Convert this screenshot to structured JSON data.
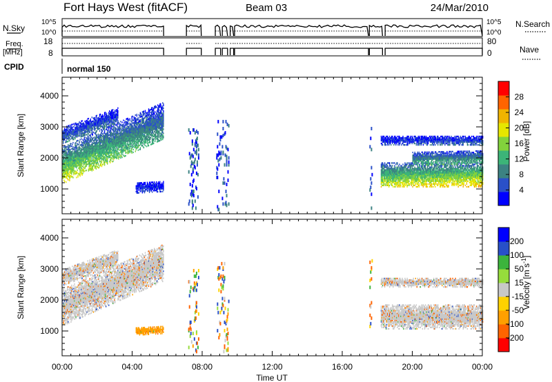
{
  "header": {
    "station": "Fort Hays West (fitACF)",
    "beam": "Beam 03",
    "date": "24/Mar/2010"
  },
  "top_panels": {
    "nsky_label": "N.Sky",
    "nsearch_label": "N.Search",
    "freq_label_1": "Freq.",
    "freq_label_2": "[MHz]",
    "nave_label": "Nave",
    "cpid_label": "CPID",
    "cpid_value": "normal 150",
    "noise_ticks": [
      "10^5",
      "10^0"
    ],
    "noise_ticks_right": [
      "10^5",
      "10^0"
    ],
    "freq_ticks": [
      "18",
      "8"
    ],
    "nave_ticks": [
      "80",
      "0"
    ]
  },
  "x_axis": {
    "label": "Time UT",
    "ticks": [
      "00:00",
      "04:00",
      "08:00",
      "12:00",
      "16:00",
      "20:00",
      "00:00"
    ]
  },
  "colors": {
    "power": [
      "#0000ff",
      "#2a50c8",
      "#3c8282",
      "#3cb478",
      "#82d23c",
      "#e6e600",
      "#f0b400",
      "#ff6400",
      "#ff0000"
    ],
    "velocity": [
      "#ff0000",
      "#ff6400",
      "#ffa000",
      "#ffd200",
      "#c8c8c8",
      "#96dc3c",
      "#3cb43c",
      "#2850c8",
      "#0000ff"
    ]
  },
  "chart_data": [
    {
      "type": "heatmap",
      "title": "",
      "xlabel": "",
      "ylabel": "Slant Range [km]",
      "xlim": [
        0,
        24
      ],
      "ylim": [
        200,
        4600
      ],
      "yticks": [
        "1000",
        "2000",
        "3000",
        "4000"
      ],
      "colorbar": {
        "label": "Power [dB]",
        "ticks": [
          "4",
          "8",
          "12",
          "16",
          "20",
          "24",
          "28"
        ],
        "range": [
          0,
          32
        ]
      },
      "bands": [
        {
          "t0": 0.0,
          "t1": 5.8,
          "r0_start": 1150,
          "r0_end": 2600,
          "width": 1200,
          "p_start": 24,
          "p_end": 12
        },
        {
          "t0": 0.0,
          "t1": 3.2,
          "r0_start": 2450,
          "r0_end": 3100,
          "width": 500,
          "p_start": 10,
          "p_end": 8
        },
        {
          "t0": 4.2,
          "t1": 5.8,
          "r0_start": 850,
          "r0_end": 900,
          "width": 350,
          "p_start": 5,
          "p_end": 5
        },
        {
          "t0": 18.2,
          "t1": 24.0,
          "r0_start": 1050,
          "r0_end": 1050,
          "width": 800,
          "p_start": 22,
          "p_end": 26
        },
        {
          "t0": 18.2,
          "t1": 24.0,
          "r0_start": 2400,
          "r0_end": 2400,
          "width": 300,
          "p_start": 6,
          "p_end": 8
        },
        {
          "t0": 20.0,
          "t1": 24.0,
          "r0_start": 1750,
          "r0_end": 1800,
          "width": 450,
          "p_start": 14,
          "p_end": 14
        }
      ],
      "sparse": [
        {
          "t0": 7.2,
          "t1": 7.8,
          "r0": 300,
          "r1": 3000
        },
        {
          "t0": 8.8,
          "t1": 9.5,
          "r0": 300,
          "r1": 3200
        },
        {
          "t0": 17.55,
          "t1": 17.7,
          "r0": 300,
          "r1": 3300
        }
      ]
    },
    {
      "type": "heatmap",
      "title": "",
      "xlabel": "Time UT",
      "ylabel": "Slant Range [km]",
      "xlim": [
        0,
        24
      ],
      "ylim": [
        200,
        4600
      ],
      "yticks": [
        "1000",
        "2000",
        "3000",
        "4000"
      ],
      "colorbar": {
        "label": "Velocity [m s^-1]",
        "ticks": [
          "-200",
          "-100",
          "-50",
          "-15",
          "15",
          "50",
          "100",
          "200"
        ],
        "range": [
          -250,
          250
        ]
      },
      "bands": [
        {
          "t0": 0.0,
          "t1": 5.8,
          "r0_start": 1150,
          "r0_end": 2600,
          "width": 1200,
          "v_mean": 0
        },
        {
          "t0": 0.0,
          "t1": 3.2,
          "r0_start": 2450,
          "r0_end": 3100,
          "width": 500,
          "v_mean": 0
        },
        {
          "t0": 4.2,
          "t1": 5.8,
          "r0_start": 850,
          "r0_end": 900,
          "width": 250,
          "v_mean": -80
        },
        {
          "t0": 18.2,
          "t1": 24.0,
          "r0_start": 1050,
          "r0_end": 1050,
          "width": 800,
          "v_mean": 0
        },
        {
          "t0": 18.2,
          "t1": 24.0,
          "r0_start": 2400,
          "r0_end": 2400,
          "width": 300,
          "v_mean": 0
        }
      ],
      "sparse": [
        {
          "t0": 7.2,
          "t1": 7.8,
          "r0": 300,
          "r1": 3000
        },
        {
          "t0": 8.8,
          "t1": 9.5,
          "r0": 300,
          "r1": 3200
        },
        {
          "t0": 17.55,
          "t1": 17.7,
          "r0": 300,
          "r1": 3300
        }
      ]
    }
  ],
  "operating_intervals": [
    [
      0.0,
      5.8
    ],
    [
      7.1,
      7.95
    ],
    [
      8.75,
      9.05
    ],
    [
      9.15,
      9.45
    ],
    [
      9.6,
      9.8
    ],
    [
      9.85,
      17.5
    ],
    [
      17.55,
      18.3
    ],
    [
      18.45,
      24.0
    ]
  ]
}
